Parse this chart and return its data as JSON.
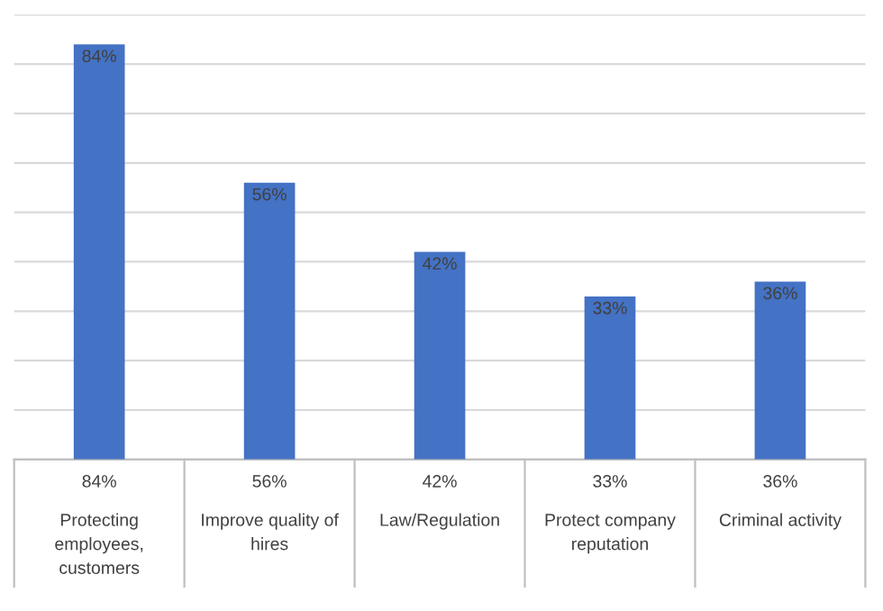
{
  "chart_data": {
    "type": "bar",
    "categories": [
      "Protecting employees, customers",
      "Improve quality of hires",
      "Law/Regulation",
      "Protect company reputation",
      "Criminal activity"
    ],
    "values": [
      84,
      56,
      42,
      33,
      36
    ],
    "value_labels": [
      "84%",
      "56%",
      "42%",
      "33%",
      "36%"
    ],
    "color": "#4472c4",
    "ylim": [
      0,
      90
    ],
    "yticks": [
      {
        "value": 0,
        "label": null
      },
      {
        "value": 10,
        "label": null
      },
      {
        "value": 20,
        "label": null
      },
      {
        "value": 30,
        "label": null
      },
      {
        "value": 40,
        "label": null
      },
      {
        "value": 50,
        "label": null
      },
      {
        "value": 60,
        "label": null
      },
      {
        "value": 70,
        "label": null
      },
      {
        "value": 80,
        "label": null
      },
      {
        "value": 90,
        "label": null
      }
    ],
    "grid": "y",
    "legend": false
  }
}
